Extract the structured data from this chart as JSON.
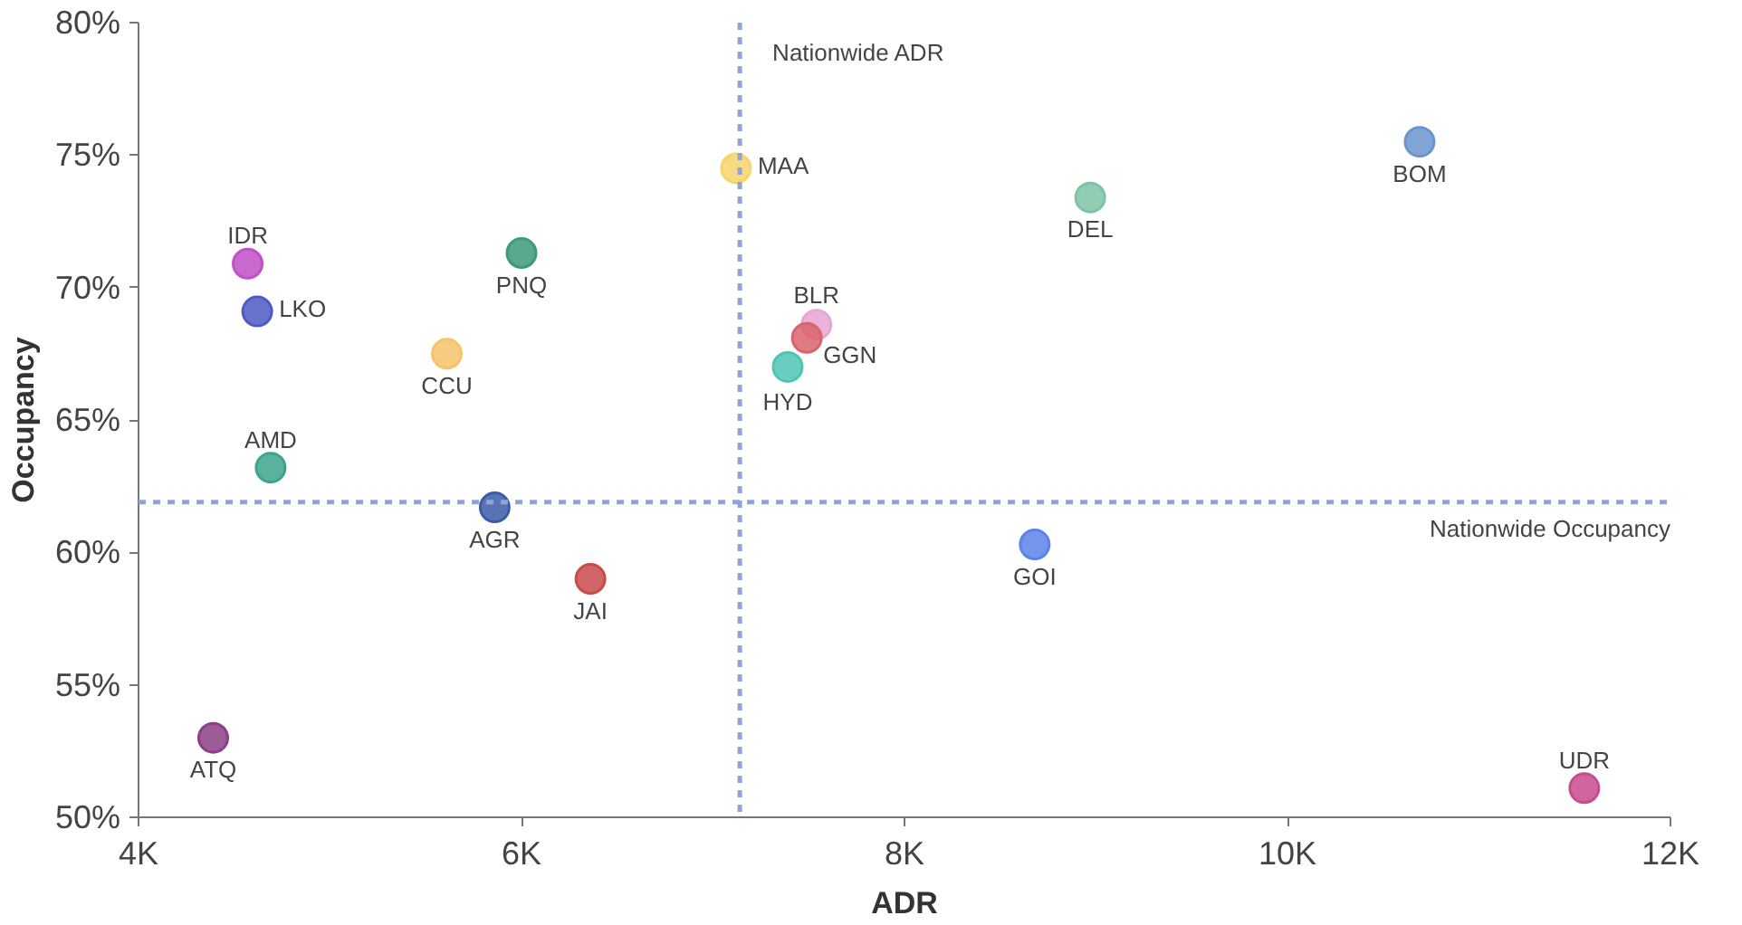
{
  "chart_data": {
    "type": "scatter",
    "xlabel": "ADR",
    "ylabel": "Occupancy",
    "x": [
      10690,
      8970,
      7120,
      4570,
      4620,
      6000,
      5610,
      7540,
      7490,
      7390,
      4690,
      5860,
      6360,
      8680,
      4390,
      11550
    ],
    "values": [
      75.5,
      73.4,
      74.5,
      70.9,
      69.1,
      71.3,
      67.5,
      68.6,
      68.1,
      67.0,
      63.2,
      61.7,
      59.0,
      60.3,
      53.0,
      51.1
    ],
    "colors": [
      "#6b93cf",
      "#7ec4a4",
      "#f7d56a",
      "#c04fc8",
      "#4f5ac6",
      "#3c9a78",
      "#f4c36a",
      "#e7a6d2",
      "#d9646e",
      "#4fc4b4",
      "#3ca48c",
      "#3a5ca8",
      "#c94a4a",
      "#5b82e8",
      "#8a3f86",
      "#c84b8c"
    ],
    "marker": "circle",
    "annotations": [
      {
        "text": "BOM",
        "x": 10690,
        "y": 75.5
      },
      {
        "text": "DEL",
        "x": 8970,
        "y": 73.4
      },
      {
        "text": "MAA",
        "x": 7120,
        "y": 74.5
      },
      {
        "text": "IDR",
        "x": 4570,
        "y": 70.9
      },
      {
        "text": "LKO",
        "x": 4620,
        "y": 69.1
      },
      {
        "text": "PNQ",
        "x": 6000,
        "y": 71.3
      },
      {
        "text": "CCU",
        "x": 5610,
        "y": 67.5
      },
      {
        "text": "BLR",
        "x": 7540,
        "y": 68.6
      },
      {
        "text": "GGN",
        "x": 7490,
        "y": 68.1
      },
      {
        "text": "HYD",
        "x": 7390,
        "y": 67.0
      },
      {
        "text": "AMD",
        "x": 4690,
        "y": 63.2
      },
      {
        "text": "AGR",
        "x": 5860,
        "y": 61.7
      },
      {
        "text": "JAI",
        "x": 6360,
        "y": 59.0
      },
      {
        "text": "GOI",
        "x": 8680,
        "y": 60.3
      },
      {
        "text": "ATQ",
        "x": 4390,
        "y": 53.0
      },
      {
        "text": "UDR",
        "x": 11550,
        "y": 51.1
      }
    ],
    "ref_lines": [
      {
        "axis": "x",
        "value": 7140,
        "label": "Nationwide ADR",
        "color": "#8fa3d6",
        "line_style": "dashed"
      },
      {
        "axis": "y",
        "value": 61.9,
        "label": "Nationwide Occupancy",
        "color": "#8fa3d6",
        "line_style": "dashed"
      }
    ],
    "xlim": [
      4000,
      12000
    ],
    "xticks": [
      {
        "value": 4000,
        "label": "4K"
      },
      {
        "value": 6000,
        "label": "6K"
      },
      {
        "value": 8000,
        "label": "8K"
      },
      {
        "value": 10000,
        "label": "10K"
      },
      {
        "value": 12000,
        "label": "12K"
      }
    ],
    "ylim": [
      50,
      80
    ],
    "yticks": [
      {
        "value": 50,
        "label": "50%"
      },
      {
        "value": 55,
        "label": "55%"
      },
      {
        "value": 60,
        "label": "60%"
      },
      {
        "value": 65,
        "label": "65%"
      },
      {
        "value": 70,
        "label": "70%"
      },
      {
        "value": 75,
        "label": "75%"
      },
      {
        "value": 80,
        "label": "80%"
      }
    ],
    "grid": false
  }
}
